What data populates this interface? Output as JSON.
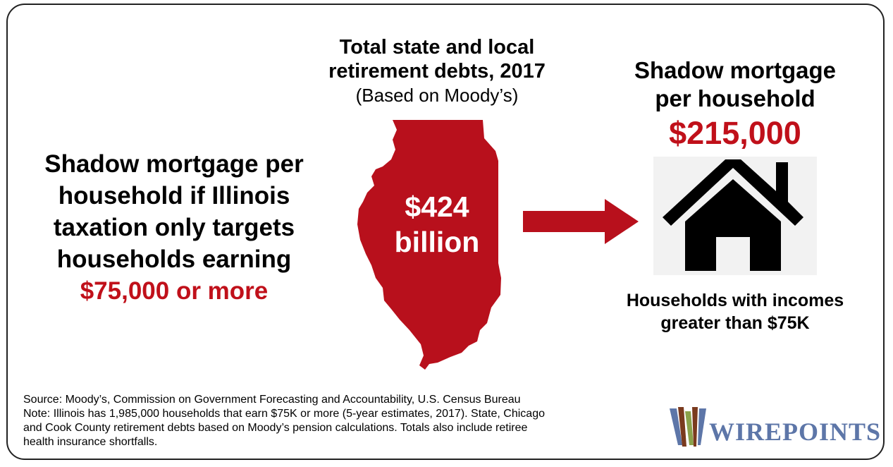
{
  "center": {
    "title_line1": "Total state and local",
    "title_line2": "retirement debts, 2017",
    "subtitle": "(Based on Moody’s)",
    "value_line1": "$424",
    "value_line2": "billion"
  },
  "left": {
    "line1": "Shadow mortgage per",
    "line2": "household if Illinois",
    "line3": "taxation only targets",
    "line4": "households earning",
    "amount": "$75,000 or more"
  },
  "right": {
    "title_line1": "Shadow mortgage",
    "title_line2": "per household",
    "amount": "$215,000",
    "caption_line1": "Households with incomes",
    "caption_line2": "greater than $75K"
  },
  "footer": {
    "source_line1": "Source: Moody’s, Commission on Government Forecasting and Accountability, U.S. Census Bureau",
    "source_line2": "Note: Illinois has 1,985,000 households that earn $75K or more (5-year estimates, 2017). State, Chicago",
    "source_line3": "and Cook County retirement debts based on Moody’s pension calculations. Totals also include retiree",
    "source_line4": "health insurance shortfalls."
  },
  "logo": {
    "text": "WIREPOINTS"
  },
  "icons": {
    "map": "illinois-map-icon",
    "arrow": "right-arrow-icon",
    "house": "house-icon"
  },
  "colors": {
    "accent_red": "#c0101a",
    "logo_blue": "#5d76a8",
    "logo_brown": "#7a3a1e",
    "logo_green": "#8aa14a"
  }
}
